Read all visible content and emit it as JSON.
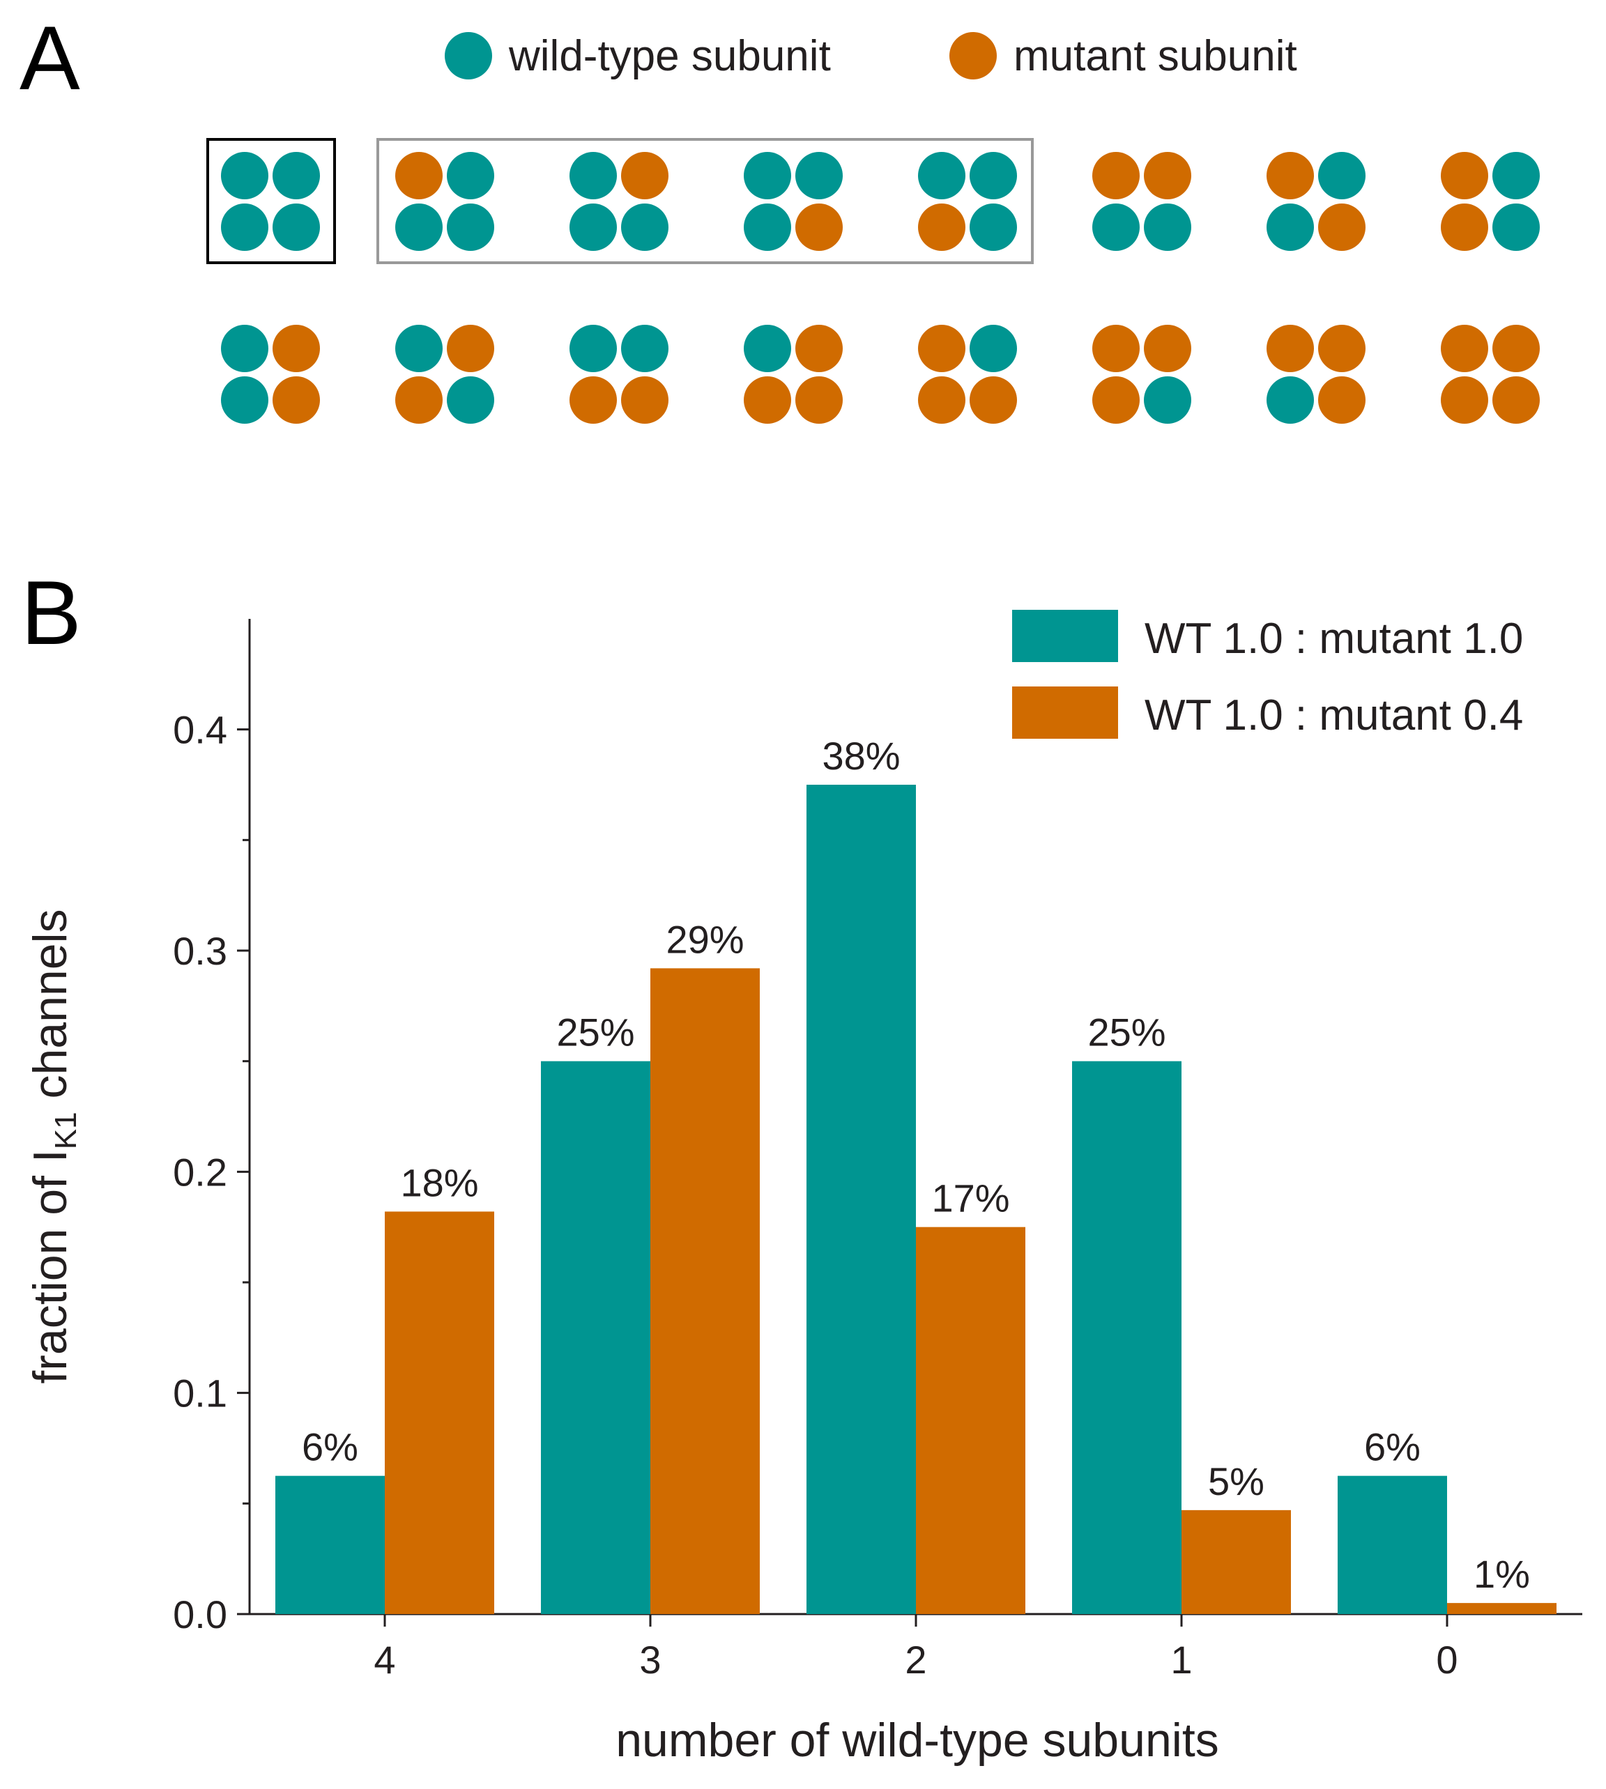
{
  "panel_a": {
    "letter": "A",
    "legend": [
      {
        "label": "wild-type subunit",
        "color_key": "wt"
      },
      {
        "label": "mutant subunit",
        "color_key": "mut"
      }
    ],
    "colors": {
      "wt": "#009591",
      "mut": "#d06b00"
    },
    "tetramers": [
      [
        "wt",
        "wt",
        "wt",
        "wt"
      ],
      [
        "mut",
        "wt",
        "wt",
        "wt"
      ],
      [
        "wt",
        "mut",
        "wt",
        "wt"
      ],
      [
        "wt",
        "wt",
        "wt",
        "mut"
      ],
      [
        "wt",
        "wt",
        "mut",
        "wt"
      ],
      [
        "mut",
        "mut",
        "wt",
        "wt"
      ],
      [
        "mut",
        "wt",
        "wt",
        "mut"
      ],
      [
        "mut",
        "wt",
        "mut",
        "wt"
      ],
      [
        "wt",
        "mut",
        "wt",
        "mut"
      ],
      [
        "wt",
        "mut",
        "mut",
        "wt"
      ],
      [
        "wt",
        "wt",
        "mut",
        "mut"
      ],
      [
        "wt",
        "mut",
        "mut",
        "mut"
      ],
      [
        "mut",
        "wt",
        "mut",
        "mut"
      ],
      [
        "mut",
        "mut",
        "mut",
        "wt"
      ],
      [
        "mut",
        "mut",
        "wt",
        "mut"
      ],
      [
        "mut",
        "mut",
        "mut",
        "mut"
      ]
    ],
    "group_boxes": [
      {
        "name": "all-wild-type",
        "style": "black"
      },
      {
        "name": "one-mutant",
        "style": "gray"
      }
    ]
  },
  "panel_b": {
    "letter": "B",
    "ylabel_main": "fraction of I",
    "ylabel_sub": "K1",
    "ylabel_rest": " channels",
    "xlabel": "number of wild-type subunits"
  },
  "chart_data": {
    "type": "bar",
    "categories": [
      "4",
      "3",
      "2",
      "1",
      "0"
    ],
    "series": [
      {
        "name": "WT 1.0 : mutant 1.0",
        "color": "#009591",
        "values": [
          0.0625,
          0.25,
          0.375,
          0.25,
          0.0625
        ],
        "labels": [
          "6%",
          "25%",
          "38%",
          "25%",
          "6%"
        ]
      },
      {
        "name": "WT 1.0 : mutant 0.4",
        "color": "#d06b00",
        "values": [
          0.182,
          0.292,
          0.175,
          0.047,
          0.005
        ],
        "labels": [
          "18%",
          "29%",
          "17%",
          "5%",
          "1%"
        ]
      }
    ],
    "ylim": [
      0,
      0.45
    ],
    "yticks": [
      0.0,
      0.1,
      0.2,
      0.3,
      0.4
    ],
    "ytick_labels": [
      "0.0",
      "0.1",
      "0.2",
      "0.3",
      "0.4"
    ],
    "legend_position": "top-right",
    "grid": false
  }
}
